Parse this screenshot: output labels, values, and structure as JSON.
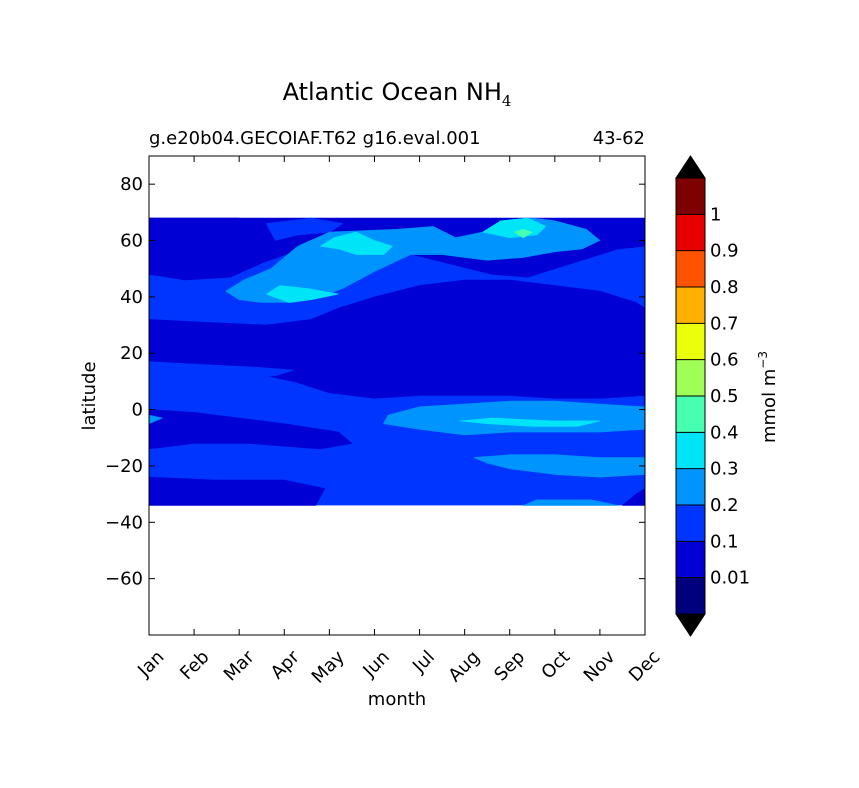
{
  "chart_data": {
    "type": "contourf",
    "title": "Atlantic Ocean NH",
    "title_subscript": "4",
    "subtitle_left": "g.e20b04.GECOIAF.T62 g16.eval.001",
    "subtitle_right": "43-62",
    "xlabel": "month",
    "ylabel": "latitude",
    "x_categories": [
      "Jan",
      "Feb",
      "Mar",
      "Apr",
      "May",
      "Jun",
      "Jul",
      "Aug",
      "Sep",
      "Oct",
      "Nov",
      "Dec"
    ],
    "xlim": [
      0,
      11
    ],
    "ylim": [
      -80,
      90
    ],
    "y_ticks": [
      80,
      60,
      40,
      20,
      0,
      -20,
      -40,
      -60
    ],
    "y_tick_labels": [
      "80",
      "60",
      "40",
      "20",
      "0",
      "−20",
      "−40",
      "−60"
    ],
    "data_lat_range": [
      -34,
      68
    ],
    "colorbar": {
      "label": "mmol m",
      "label_superscript": "−3",
      "levels": [
        0,
        0.01,
        0.1,
        0.2,
        0.3,
        0.4,
        0.5,
        0.6,
        0.7,
        0.8,
        0.9,
        1.0,
        1.1
      ],
      "tick_labels": [
        "0.01",
        "0.1",
        "0.2",
        "0.3",
        "0.4",
        "0.5",
        "0.6",
        "0.7",
        "0.8",
        "0.9",
        "1"
      ],
      "colors": [
        "#00007f",
        "#0000d5",
        "#0034ff",
        "#0094ff",
        "#00e4f7",
        "#46ffb0",
        "#a0ff56",
        "#eaff0a",
        "#ffb000",
        "#ff5300",
        "#e80000",
        "#7f0000"
      ],
      "under_color": "#000000",
      "over_color": "#000000"
    },
    "regions": [
      {
        "level": 2,
        "name": "base-0.1-0.2"
      },
      {
        "level": 0,
        "name": "north-edge-low",
        "pts": [
          [
            0,
            68
          ],
          [
            0.3,
            65
          ],
          [
            1.2,
            64
          ],
          [
            1.6,
            66
          ],
          [
            2,
            68
          ]
        ]
      },
      {
        "level": 0,
        "name": "band-28n-low",
        "pts": [
          [
            4.9,
            27
          ],
          [
            5.3,
            29
          ],
          [
            6.5,
            29
          ],
          [
            7.2,
            27
          ],
          [
            8.2,
            25
          ],
          [
            8.8,
            24
          ],
          [
            8.2,
            23
          ],
          [
            7.2,
            21
          ],
          [
            6.8,
            23
          ],
          [
            5.5,
            24
          ],
          [
            4.9,
            25
          ]
        ]
      },
      {
        "level": 0,
        "name": "band-35n-low",
        "pts": [
          [
            5.8,
            33
          ],
          [
            6.4,
            36
          ],
          [
            7,
            37
          ],
          [
            7.4,
            35
          ],
          [
            7.2,
            32
          ],
          [
            6.3,
            31
          ]
        ]
      },
      {
        "level": 1,
        "name": "north-0.01",
        "pts": [
          [
            0,
            64
          ],
          [
            0,
            48
          ],
          [
            0.8,
            46
          ],
          [
            1.8,
            47
          ],
          [
            2.5,
            52
          ],
          [
            3.2,
            56
          ],
          [
            4,
            60
          ],
          [
            5,
            60
          ],
          [
            5.6,
            56
          ],
          [
            6.6,
            52
          ],
          [
            7.6,
            48
          ],
          [
            8.4,
            47
          ],
          [
            9.4,
            52
          ],
          [
            10.4,
            57
          ],
          [
            11,
            58
          ],
          [
            11,
            68
          ],
          [
            0,
            68
          ]
        ]
      },
      {
        "level": 1,
        "name": "mid-0.01",
        "pts": [
          [
            0,
            32
          ],
          [
            1.2,
            31
          ],
          [
            2.6,
            30
          ],
          [
            3.6,
            32
          ],
          [
            4.2,
            36
          ],
          [
            5,
            40
          ],
          [
            6,
            44
          ],
          [
            7,
            46
          ],
          [
            8,
            46
          ],
          [
            9,
            44
          ],
          [
            10,
            42
          ],
          [
            10.8,
            38
          ],
          [
            11,
            36
          ],
          [
            11,
            5
          ],
          [
            10,
            4
          ],
          [
            9,
            4
          ],
          [
            8,
            5
          ],
          [
            7,
            5
          ],
          [
            6,
            5
          ],
          [
            5,
            4
          ],
          [
            4,
            6
          ],
          [
            3.2,
            10
          ],
          [
            2.6,
            12
          ],
          [
            1.8,
            13
          ],
          [
            0,
            12
          ]
        ]
      },
      {
        "level": 1,
        "name": "tropic-0.01",
        "pts": [
          [
            0,
            0
          ],
          [
            1,
            -1
          ],
          [
            2,
            -3
          ],
          [
            3,
            -5
          ],
          [
            4.2,
            -8
          ],
          [
            4.5,
            -12
          ],
          [
            3.8,
            -14
          ],
          [
            2.2,
            -12
          ],
          [
            1,
            -12
          ],
          [
            0,
            -14
          ]
        ]
      },
      {
        "level": 1,
        "name": "south-0.01",
        "pts": [
          [
            0,
            -24
          ],
          [
            1.5,
            -25
          ],
          [
            3,
            -25
          ],
          [
            3.9,
            -28
          ],
          [
            3.7,
            -34
          ],
          [
            0,
            -34
          ]
        ]
      },
      {
        "level": 1,
        "name": "sw-0.01",
        "pts": [
          [
            10.5,
            -34
          ],
          [
            10.8,
            -30
          ],
          [
            11,
            -28
          ],
          [
            11,
            -34
          ]
        ]
      },
      {
        "level": 2,
        "name": "north-gap-0.1",
        "pts": [
          [
            2.8,
            60
          ],
          [
            3.3,
            62
          ],
          [
            4,
            63
          ],
          [
            4.3,
            66
          ],
          [
            3.6,
            68
          ],
          [
            2.6,
            66
          ]
        ]
      },
      {
        "level": 2,
        "name": "mid-gap-0.1",
        "pts": [
          [
            0,
            17
          ],
          [
            1.2,
            16
          ],
          [
            2.4,
            15
          ],
          [
            3.2,
            14
          ],
          [
            2.8,
            12
          ],
          [
            1.6,
            11
          ],
          [
            0,
            11
          ]
        ]
      },
      {
        "level": 3,
        "name": "north-0.2",
        "pts": [
          [
            1.7,
            42
          ],
          [
            2.1,
            46
          ],
          [
            2.7,
            50
          ],
          [
            3.3,
            58
          ],
          [
            4,
            63
          ],
          [
            5.5,
            64
          ],
          [
            6.3,
            65
          ],
          [
            6.8,
            61
          ],
          [
            7.4,
            63
          ],
          [
            8,
            66
          ],
          [
            8.5,
            68
          ],
          [
            9,
            67
          ],
          [
            9.7,
            64
          ],
          [
            10,
            60
          ],
          [
            9.6,
            57
          ],
          [
            9,
            56
          ],
          [
            8.3,
            54
          ],
          [
            7.5,
            53
          ],
          [
            6.5,
            55
          ],
          [
            5.8,
            55
          ],
          [
            5,
            49
          ],
          [
            4.3,
            43
          ],
          [
            3.8,
            40
          ],
          [
            3.2,
            38
          ],
          [
            2.5,
            38
          ],
          [
            2,
            39
          ]
        ]
      },
      {
        "level": 3,
        "name": "tropic-0.2",
        "pts": [
          [
            5.3,
            -2
          ],
          [
            6,
            1
          ],
          [
            7,
            2
          ],
          [
            8,
            3
          ],
          [
            9,
            3
          ],
          [
            10,
            2
          ],
          [
            11,
            1
          ],
          [
            11,
            -7
          ],
          [
            10,
            -8
          ],
          [
            9,
            -8
          ],
          [
            8,
            -8
          ],
          [
            7,
            -9
          ],
          [
            6,
            -7
          ],
          [
            5.2,
            -5
          ]
        ]
      },
      {
        "level": 3,
        "name": "south-0.2",
        "pts": [
          [
            7.2,
            -17
          ],
          [
            8,
            -16
          ],
          [
            9,
            -16
          ],
          [
            10,
            -17
          ],
          [
            11,
            -17
          ],
          [
            11,
            -23
          ],
          [
            10,
            -24
          ],
          [
            9,
            -23
          ],
          [
            8.5,
            -22
          ],
          [
            8,
            -21
          ],
          [
            7.5,
            -19
          ]
        ]
      },
      {
        "level": 3,
        "name": "sw-0.2",
        "pts": [
          [
            8.3,
            -34
          ],
          [
            8.6,
            -32
          ],
          [
            9.8,
            -32
          ],
          [
            10.4,
            -34
          ]
        ]
      },
      {
        "level": 3,
        "name": "west-notch-0.2",
        "pts": [
          [
            0,
            -2
          ],
          [
            0.3,
            -3
          ],
          [
            0,
            -5
          ]
        ]
      },
      {
        "level": 4,
        "name": "north-0.3-a",
        "pts": [
          [
            3.8,
            58
          ],
          [
            4.1,
            61
          ],
          [
            4.6,
            63
          ],
          [
            5,
            60
          ],
          [
            5.4,
            58
          ],
          [
            5.2,
            55
          ],
          [
            4.6,
            55
          ],
          [
            4.2,
            57
          ]
        ]
      },
      {
        "level": 4,
        "name": "north-0.3-b",
        "pts": [
          [
            2.6,
            41
          ],
          [
            2.9,
            44
          ],
          [
            3.5,
            43
          ],
          [
            4.2,
            41
          ],
          [
            3.6,
            39
          ],
          [
            3.1,
            38
          ]
        ]
      },
      {
        "level": 4,
        "name": "north-0.3-c",
        "pts": [
          [
            7.4,
            63
          ],
          [
            7.8,
            67
          ],
          [
            8.4,
            68
          ],
          [
            8.8,
            65
          ],
          [
            8.6,
            62
          ],
          [
            8,
            61
          ]
        ]
      },
      {
        "level": 4,
        "name": "tropic-0.3",
        "pts": [
          [
            6.9,
            -4
          ],
          [
            7.6,
            -3
          ],
          [
            9,
            -4
          ],
          [
            10,
            -4
          ],
          [
            9.5,
            -6
          ],
          [
            8.5,
            -6
          ],
          [
            7.5,
            -5
          ]
        ]
      },
      {
        "level": 5,
        "name": "sep-0.4",
        "pts": [
          [
            8.1,
            63
          ],
          [
            8.3,
            64
          ],
          [
            8.5,
            63
          ],
          [
            8.3,
            61
          ]
        ]
      }
    ]
  }
}
